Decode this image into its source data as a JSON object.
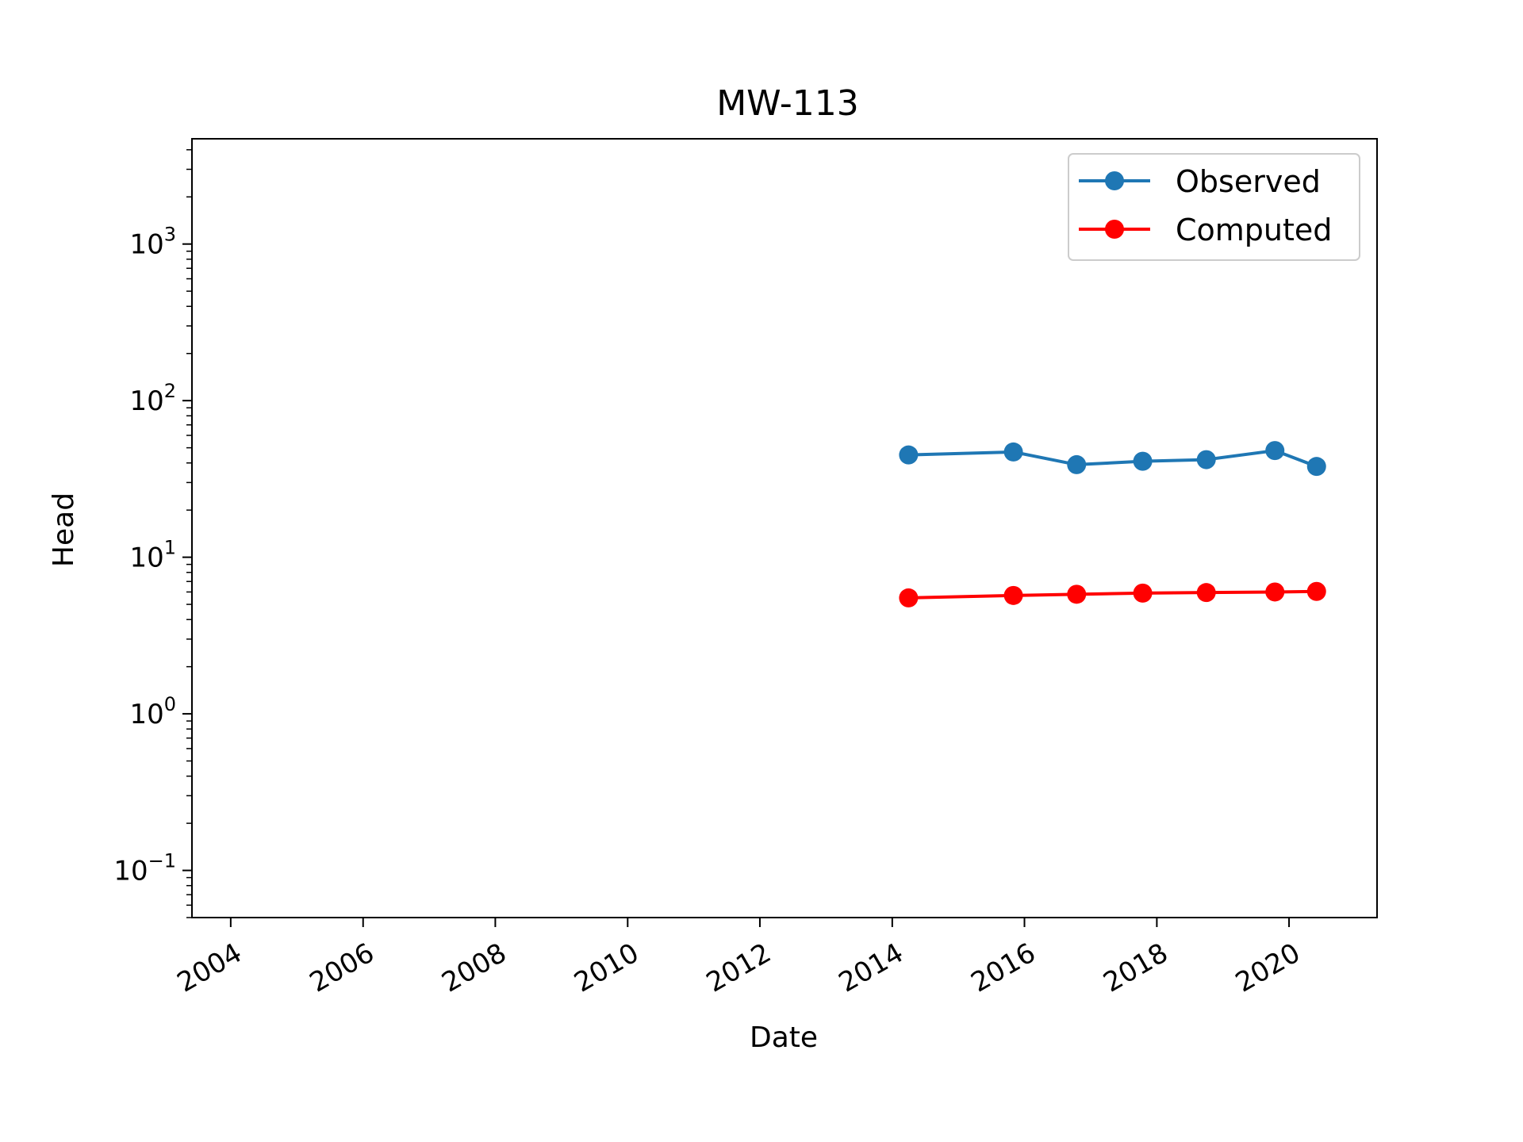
{
  "chart_data": {
    "type": "line",
    "title": "MW-113",
    "xlabel": "Date",
    "ylabel": "Head",
    "yscale": "log",
    "xlim": [
      "2003-06-01",
      "2021-05-01"
    ],
    "ylim": [
      0.05,
      4700
    ],
    "x_ticks": [
      "2004",
      "2006",
      "2008",
      "2010",
      "2012",
      "2014",
      "2016",
      "2018",
      "2020"
    ],
    "y_ticks": [
      {
        "value": 0.1,
        "base": "10",
        "exp": "−1"
      },
      {
        "value": 1,
        "base": "10",
        "exp": "0"
      },
      {
        "value": 10,
        "base": "10",
        "exp": "1"
      },
      {
        "value": 100,
        "base": "10",
        "exp": "2"
      },
      {
        "value": 1000,
        "base": "10",
        "exp": "3"
      }
    ],
    "grid": false,
    "legend_position": "top-right",
    "x": [
      "2014-04-01",
      "2015-11-01",
      "2016-10-15",
      "2017-10-15",
      "2018-10-01",
      "2019-10-15",
      "2020-06-01"
    ],
    "series": [
      {
        "name": "Observed",
        "color": "#1f77b4",
        "values": [
          45,
          47,
          39,
          41,
          42,
          48,
          38
        ]
      },
      {
        "name": "Computed",
        "color": "#ff0000",
        "values": [
          5.5,
          5.7,
          5.8,
          5.9,
          5.95,
          6.0,
          6.05
        ]
      }
    ]
  }
}
